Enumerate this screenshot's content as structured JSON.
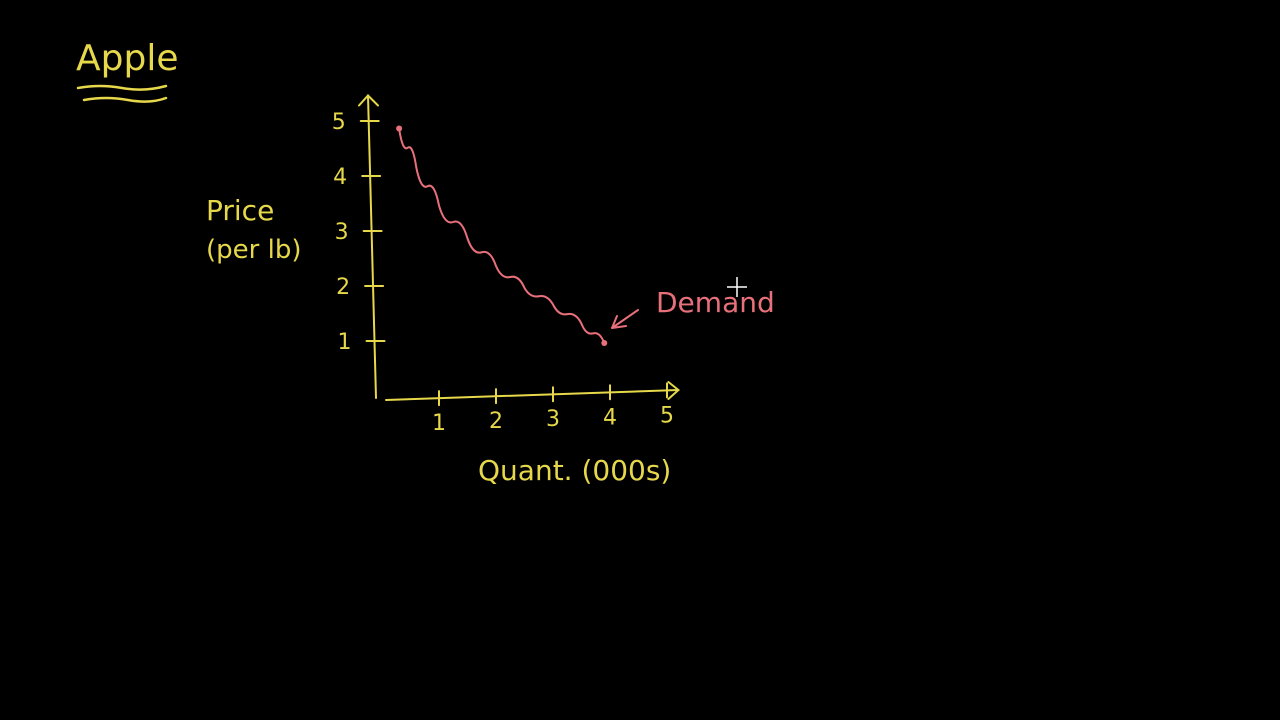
{
  "page_title": "Apple",
  "colors": {
    "background": "#000000",
    "axes": "#e6d84a",
    "curve": "#e8707a",
    "cursor": "#ffffff"
  },
  "cursor_icon": "crosshair-icon",
  "chart_data": {
    "type": "line",
    "title": "Apple",
    "ylabel_line1": "Price",
    "ylabel_line2": "(per lb)",
    "xlabel": "Quant. (000s)",
    "xlim": [
      0,
      5
    ],
    "ylim": [
      0,
      5
    ],
    "x_ticks": [
      1,
      2,
      3,
      4,
      5
    ],
    "x_tick_labels": [
      "1",
      "2",
      "3",
      "4",
      "5"
    ],
    "y_ticks": [
      1,
      2,
      3,
      4,
      5
    ],
    "y_tick_labels": [
      "1",
      "2",
      "3",
      "4",
      "5"
    ],
    "grid": false,
    "series": [
      {
        "name": "Demand",
        "x": [
          0.3,
          0.6,
          1.0,
          1.5,
          2.0,
          2.5,
          3.0,
          3.5,
          3.9
        ],
        "y": [
          4.9,
          4.2,
          3.5,
          2.9,
          2.4,
          2.0,
          1.7,
          1.35,
          1.0
        ]
      }
    ],
    "annotations": [
      {
        "text": "Demand",
        "points_to_series": "Demand"
      }
    ]
  }
}
